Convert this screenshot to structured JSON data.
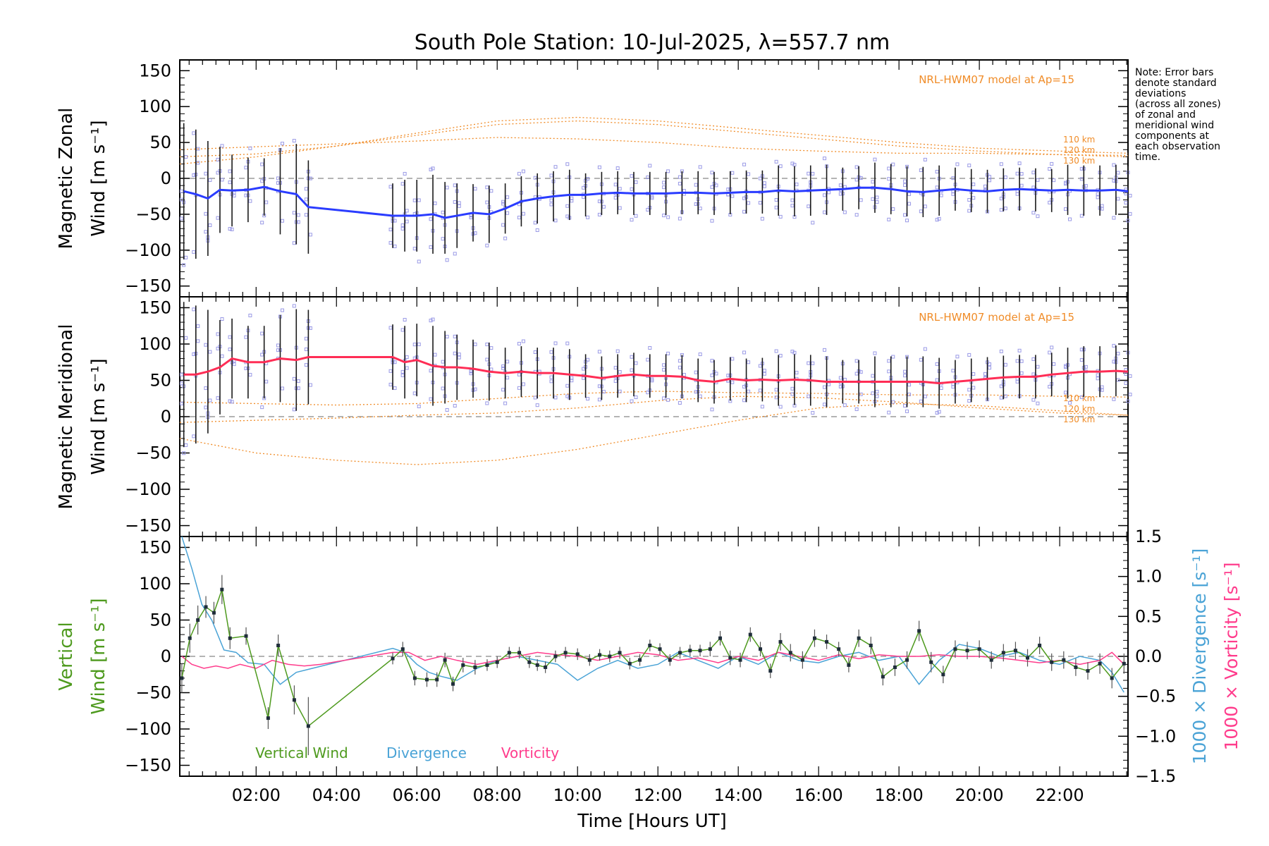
{
  "title": "South Pole Station: 10-Jul-2025, λ=557.7 nm",
  "note_lines": [
    "Note: Error bars",
    "denote standard",
    "deviations",
    "(across all zones)",
    "of zonal and",
    "meridional wind",
    "components at",
    "each observation",
    "time."
  ],
  "xlabel": "Time [Hours UT]",
  "colors": {
    "zonal": "#2a3cff",
    "meridional": "#ff2d55",
    "vertical": "#4e9a1e",
    "divergence": "#4aa3d6",
    "vorticity": "#ff3c8c",
    "model": "#f08c28",
    "scatter": "#9a9ae6"
  },
  "chart_data": [
    {
      "type": "line",
      "panel": "zonal",
      "ylabel_lines": [
        "Magnetic Zonal",
        "Wind [m s⁻¹]"
      ],
      "ylim": [
        -165,
        165
      ],
      "yticks": [
        150,
        100,
        50,
        0,
        -50,
        -100,
        -150
      ],
      "xlim": [
        0.1,
        23.7
      ],
      "model_label": "NRL-HWM07 model at Ap=15",
      "altitude_labels": [
        "110 km",
        "120 km",
        "130 km"
      ],
      "series_name": "Zonal wind",
      "x": [
        0.2,
        0.5,
        0.8,
        1.1,
        1.4,
        1.8,
        2.2,
        2.6,
        3.0,
        3.3,
        5.4,
        5.7,
        6.0,
        6.4,
        6.7,
        7.0,
        7.4,
        7.8,
        8.2,
        8.6,
        9.0,
        9.4,
        9.8,
        10.2,
        10.6,
        11.0,
        11.4,
        11.8,
        12.2,
        12.6,
        13.0,
        13.4,
        13.8,
        14.2,
        14.6,
        15.0,
        15.4,
        15.8,
        16.2,
        16.6,
        17.0,
        17.4,
        17.8,
        18.2,
        18.6,
        19.0,
        19.4,
        19.8,
        20.2,
        20.6,
        21.0,
        21.4,
        21.8,
        22.2,
        22.6,
        23.0,
        23.4,
        23.7
      ],
      "y": [
        -18,
        -22,
        -28,
        -16,
        -17,
        -16,
        -12,
        -18,
        -22,
        -40,
        -52,
        -52,
        -52,
        -50,
        -55,
        -52,
        -48,
        -50,
        -42,
        -32,
        -28,
        -25,
        -23,
        -23,
        -21,
        -20,
        -21,
        -21,
        -21,
        -20,
        -20,
        -21,
        -20,
        -19,
        -19,
        -17,
        -18,
        -17,
        -16,
        -15,
        -13,
        -13,
        -15,
        -18,
        -19,
        -17,
        -15,
        -17,
        -18,
        -16,
        -15,
        -16,
        -17,
        -16,
        -17,
        -17,
        -16,
        -18
      ],
      "err": [
        95,
        90,
        80,
        60,
        50,
        45,
        40,
        60,
        70,
        65,
        45,
        50,
        50,
        55,
        50,
        45,
        40,
        40,
        35,
        35,
        35,
        35,
        35,
        30,
        30,
        30,
        30,
        30,
        30,
        30,
        30,
        30,
        30,
        30,
        30,
        35,
        35,
        35,
        35,
        30,
        30,
        35,
        35,
        35,
        35,
        35,
        30,
        30,
        30,
        30,
        30,
        30,
        30,
        35,
        35,
        35,
        35,
        35
      ],
      "models": [
        {
          "name": "110 km",
          "x": [
            0.1,
            2,
            4,
            6,
            8,
            10,
            12,
            14,
            16,
            18,
            20,
            22,
            23.7
          ],
          "y": [
            40,
            44,
            48,
            52,
            57,
            55,
            50,
            42,
            38,
            35,
            35,
            33,
            32
          ]
        },
        {
          "name": "120 km",
          "x": [
            0.1,
            2,
            4,
            6,
            8,
            10,
            12,
            14,
            16,
            18,
            20,
            22,
            23.7
          ],
          "y": [
            30,
            34,
            45,
            63,
            80,
            85,
            80,
            70,
            60,
            50,
            42,
            38,
            35
          ]
        },
        {
          "name": "130 km",
          "x": [
            0.1,
            2,
            4,
            6,
            8,
            10,
            12,
            14,
            16,
            18,
            20,
            22,
            23.7
          ],
          "y": [
            20,
            30,
            45,
            60,
            75,
            80,
            75,
            65,
            55,
            45,
            38,
            33,
            30
          ]
        }
      ]
    },
    {
      "type": "line",
      "panel": "meridional",
      "ylabel_lines": [
        "Magnetic Meridional",
        "Wind [m s⁻¹]"
      ],
      "ylim": [
        -165,
        165
      ],
      "yticks": [
        150,
        100,
        50,
        0,
        -50,
        -100,
        -150
      ],
      "xlim": [
        0.1,
        23.7
      ],
      "model_label": "NRL-HWM07 model at Ap=15",
      "altitude_labels": [
        "110 km",
        "120 km",
        "130 km"
      ],
      "series_name": "Meridional wind",
      "x": [
        0.2,
        0.5,
        0.8,
        1.1,
        1.4,
        1.8,
        2.2,
        2.6,
        3.0,
        3.3,
        5.4,
        5.7,
        6.0,
        6.4,
        6.7,
        7.0,
        7.4,
        7.8,
        8.2,
        8.6,
        9.0,
        9.4,
        9.8,
        10.2,
        10.6,
        11.0,
        11.4,
        11.8,
        12.2,
        12.6,
        13.0,
        13.4,
        13.8,
        14.2,
        14.6,
        15.0,
        15.4,
        15.8,
        16.2,
        16.6,
        17.0,
        17.4,
        17.8,
        18.2,
        18.6,
        19.0,
        19.4,
        19.8,
        20.2,
        20.6,
        21.0,
        21.4,
        21.8,
        22.2,
        22.6,
        23.0,
        23.4,
        23.7
      ],
      "y": [
        58,
        58,
        62,
        68,
        80,
        75,
        75,
        80,
        78,
        82,
        82,
        75,
        78,
        70,
        68,
        68,
        66,
        62,
        60,
        62,
        60,
        60,
        58,
        56,
        53,
        56,
        58,
        56,
        56,
        55,
        50,
        48,
        52,
        50,
        51,
        50,
        51,
        50,
        48,
        48,
        48,
        48,
        48,
        48,
        48,
        46,
        48,
        50,
        52,
        54,
        55,
        55,
        58,
        60,
        62,
        62,
        63,
        62
      ],
      "err": [
        100,
        95,
        85,
        65,
        55,
        50,
        50,
        60,
        70,
        65,
        45,
        50,
        50,
        55,
        50,
        45,
        40,
        40,
        35,
        35,
        35,
        35,
        35,
        30,
        30,
        30,
        30,
        30,
        30,
        30,
        30,
        30,
        30,
        30,
        30,
        35,
        35,
        35,
        35,
        30,
        30,
        35,
        35,
        35,
        35,
        35,
        30,
        30,
        30,
        30,
        30,
        30,
        30,
        35,
        35,
        35,
        35,
        35
      ],
      "models": [
        {
          "name": "110 km",
          "x": [
            0.1,
            2,
            4,
            6,
            8,
            10,
            12,
            14,
            16,
            18,
            20,
            22,
            23.7
          ],
          "y": [
            20,
            18,
            16,
            18,
            25,
            32,
            35,
            33,
            32,
            30,
            30,
            28,
            27
          ]
        },
        {
          "name": "120 km",
          "x": [
            0.1,
            2,
            4,
            6,
            8,
            10,
            12,
            14,
            16,
            18,
            20,
            22,
            23.7
          ],
          "y": [
            -8,
            -5,
            -2,
            2,
            5,
            12,
            22,
            28,
            26,
            20,
            12,
            5,
            2
          ]
        },
        {
          "name": "130 km",
          "x": [
            0.1,
            2,
            4,
            6,
            8,
            10,
            12,
            14,
            16,
            18,
            20,
            22,
            23.7
          ],
          "y": [
            -30,
            -50,
            -60,
            -66,
            -60,
            -45,
            -25,
            -5,
            12,
            18,
            15,
            8,
            2
          ]
        }
      ]
    },
    {
      "type": "line",
      "panel": "vertical",
      "ylabel_lines": [
        "Vertical",
        "Wind [m s⁻¹]"
      ],
      "right_ylabel_divergence": "1000 × Divergence [s⁻¹]",
      "right_ylabel_vorticity": "1000 × Vorticity [s⁻¹]",
      "ylim": [
        -165,
        165
      ],
      "yticks": [
        150,
        100,
        50,
        0,
        -50,
        -100,
        -150
      ],
      "y2lim": [
        -1.5,
        1.5
      ],
      "y2ticks": [
        1.5,
        1.0,
        0.5,
        0.0,
        -0.5,
        -1.0,
        -1.5
      ],
      "y2tick_labels": [
        "1.5",
        "1.0",
        "0.5",
        "0.0",
        "−0.5",
        "−1.0",
        "−1.5"
      ],
      "xlim": [
        0.1,
        23.7
      ],
      "xticks": [
        2,
        4,
        6,
        8,
        10,
        12,
        14,
        16,
        18,
        20,
        22
      ],
      "xtick_labels": [
        "02:00",
        "04:00",
        "06:00",
        "08:00",
        "10:00",
        "12:00",
        "14:00",
        "16:00",
        "18:00",
        "20:00",
        "22:00"
      ],
      "legend": [
        "Vertical Wind",
        "Divergence",
        "Vorticity"
      ],
      "vertical": {
        "x": [
          0.15,
          0.35,
          0.55,
          0.75,
          0.95,
          1.15,
          1.35,
          1.75,
          2.3,
          2.55,
          2.95,
          3.3,
          5.4,
          5.65,
          5.95,
          6.25,
          6.5,
          6.7,
          6.9,
          7.15,
          7.45,
          7.75,
          8.0,
          8.3,
          8.55,
          8.8,
          9.0,
          9.2,
          9.45,
          9.7,
          10.0,
          10.3,
          10.55,
          10.8,
          11.05,
          11.3,
          11.55,
          11.8,
          12.05,
          12.3,
          12.55,
          12.8,
          13.05,
          13.3,
          13.55,
          13.8,
          14.05,
          14.3,
          14.55,
          14.8,
          15.05,
          15.3,
          15.6,
          15.9,
          16.2,
          16.5,
          16.75,
          17.0,
          17.3,
          17.6,
          17.9,
          18.2,
          18.5,
          18.8,
          19.1,
          19.4,
          19.7,
          20.0,
          20.3,
          20.6,
          20.9,
          21.2,
          21.5,
          21.8,
          22.1,
          22.4,
          22.7,
          23.0,
          23.3,
          23.6
        ],
        "y": [
          -30,
          25,
          50,
          68,
          60,
          92,
          25,
          28,
          -85,
          15,
          -60,
          -96,
          -3,
          10,
          -30,
          -32,
          -32,
          -5,
          -38,
          -12,
          -15,
          -12,
          -8,
          5,
          5,
          -8,
          -12,
          -15,
          0,
          5,
          3,
          -5,
          2,
          0,
          5,
          -10,
          -5,
          15,
          10,
          -5,
          5,
          8,
          8,
          10,
          25,
          -2,
          -5,
          30,
          10,
          -20,
          20,
          5,
          -5,
          25,
          20,
          10,
          -12,
          25,
          15,
          -28,
          -15,
          -5,
          35,
          -8,
          -25,
          10,
          8,
          10,
          -5,
          5,
          8,
          -2,
          15,
          -8,
          -5,
          -15,
          -20,
          -10,
          -30,
          -10
        ],
        "err": [
          20,
          20,
          20,
          15,
          15,
          20,
          15,
          12,
          15,
          15,
          20,
          40,
          8,
          10,
          10,
          10,
          10,
          10,
          10,
          10,
          10,
          8,
          8,
          8,
          8,
          8,
          8,
          8,
          8,
          8,
          8,
          8,
          8,
          8,
          8,
          8,
          8,
          8,
          8,
          8,
          8,
          8,
          8,
          10,
          10,
          10,
          10,
          10,
          10,
          10,
          12,
          12,
          12,
          12,
          10,
          10,
          10,
          12,
          12,
          12,
          12,
          12,
          14,
          14,
          12,
          12,
          12,
          12,
          12,
          12,
          12,
          12,
          12,
          12,
          12,
          12,
          12,
          14,
          14,
          14
        ]
      },
      "divergence": {
        "x": [
          0.15,
          0.4,
          0.65,
          0.9,
          1.2,
          1.5,
          1.8,
          2.2,
          2.6,
          3.0,
          3.4,
          5.4,
          5.7,
          6.0,
          6.3,
          6.6,
          7.0,
          7.5,
          8.0,
          8.5,
          9.0,
          9.5,
          10.0,
          10.5,
          11.0,
          11.5,
          12.0,
          12.5,
          13.0,
          13.5,
          14.0,
          14.5,
          15.0,
          15.5,
          16.0,
          16.5,
          17.0,
          17.5,
          18.0,
          18.5,
          19.0,
          19.5,
          20.0,
          20.5,
          21.0,
          21.5,
          22.0,
          22.5,
          23.0,
          23.3,
          23.6
        ],
        "y": [
          1.5,
          1.1,
          0.65,
          0.45,
          0.08,
          0.05,
          -0.08,
          -0.1,
          -0.35,
          -0.2,
          -0.15,
          0.1,
          0.05,
          -0.1,
          -0.2,
          -0.25,
          -0.3,
          -0.15,
          -0.05,
          0.0,
          -0.05,
          -0.1,
          -0.3,
          -0.15,
          -0.05,
          -0.15,
          -0.1,
          0.05,
          -0.05,
          -0.15,
          0.0,
          -0.1,
          0.05,
          -0.05,
          -0.08,
          0.0,
          0.05,
          -0.05,
          0.0,
          -0.35,
          -0.05,
          0.15,
          0.1,
          0.0,
          0.05,
          -0.05,
          -0.1,
          0.0,
          -0.05,
          -0.2,
          -0.45
        ]
      },
      "vorticity": {
        "x": [
          0.15,
          0.4,
          0.7,
          1.0,
          1.3,
          1.6,
          2.0,
          2.4,
          2.8,
          3.2,
          3.6,
          5.4,
          5.8,
          6.2,
          6.6,
          7.0,
          7.5,
          8.0,
          8.5,
          9.0,
          9.5,
          10.0,
          10.5,
          11.0,
          11.5,
          12.0,
          12.5,
          13.0,
          13.5,
          14.0,
          14.5,
          15.0,
          15.5,
          16.0,
          16.5,
          17.0,
          17.5,
          18.0,
          18.5,
          19.0,
          19.5,
          20.0,
          20.5,
          21.0,
          21.5,
          22.0,
          22.5,
          23.0,
          23.3,
          23.6
        ],
        "y": [
          0.0,
          -0.1,
          -0.15,
          -0.12,
          -0.15,
          -0.1,
          -0.15,
          -0.05,
          -0.1,
          -0.12,
          -0.1,
          0.05,
          0.05,
          -0.05,
          0.0,
          -0.05,
          -0.1,
          -0.05,
          0.0,
          0.05,
          0.02,
          0.0,
          -0.05,
          0.0,
          0.05,
          0.02,
          -0.05,
          -0.02,
          -0.08,
          0.0,
          -0.05,
          0.05,
          0.0,
          -0.05,
          0.02,
          -0.03,
          0.02,
          0.0,
          0.0,
          0.02,
          0.0,
          0.0,
          -0.02,
          -0.05,
          -0.08,
          -0.05,
          -0.1,
          -0.05,
          0.05,
          -0.1
        ]
      }
    }
  ]
}
